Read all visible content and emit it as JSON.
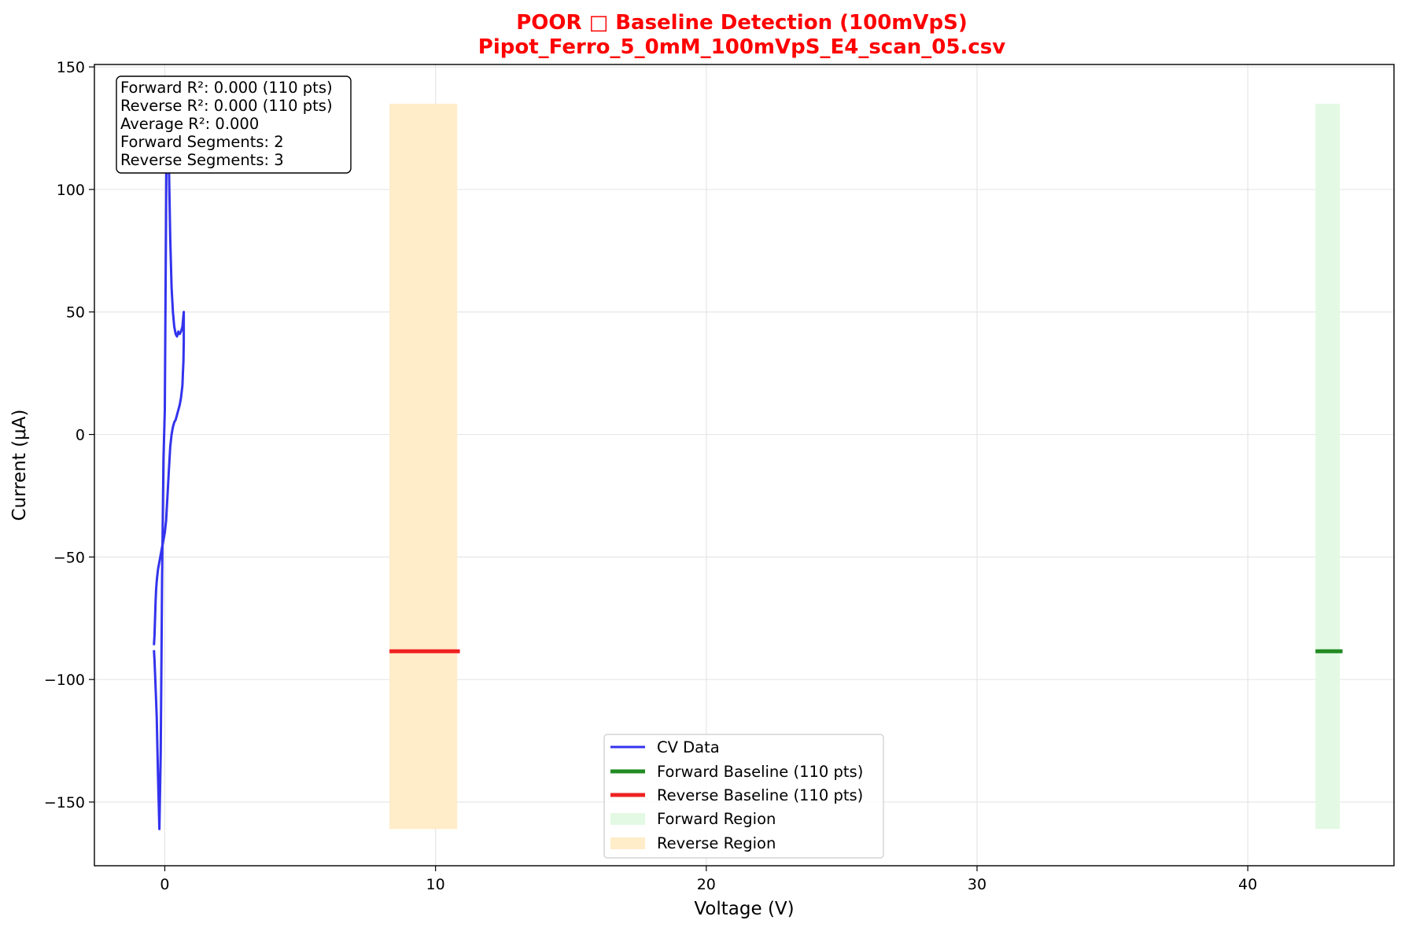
{
  "chart_data": {
    "type": "line",
    "title": "POOR □ Baseline Detection (100mVpS)",
    "subtitle": "Pipot_Ferro_5_0mM_100mVpS_E4_scan_05.csv",
    "title_color": "#ff0000",
    "xlabel": "Voltage (V)",
    "ylabel": "Current (μA)",
    "xlim": [
      -2.6,
      45.4
    ],
    "ylim": [
      -176,
      151
    ],
    "xticks": [
      0,
      10,
      20,
      30,
      40
    ],
    "yticks": [
      150,
      100,
      50,
      0,
      -50,
      -100,
      -150
    ],
    "xtick_labels": [
      "0",
      "10",
      "20",
      "30",
      "40"
    ],
    "ytick_labels": [
      "150",
      "100",
      "50",
      "0",
      "−50",
      "−100",
      "−150"
    ],
    "grid": true,
    "legend_position": "bottom-center",
    "stats_box": {
      "position": "top-left",
      "lines": [
        "Forward R²: 0.000 (110 pts)",
        "Reverse R²: 0.000 (110 pts)",
        "Average R²: 0.000",
        "Forward Segments: 2",
        "Reverse Segments: 3"
      ]
    },
    "series": [
      {
        "name": "CV Data",
        "kind": "line",
        "color": "#3333ee",
        "x": [
          -0.4,
          -0.38,
          -0.35,
          -0.3,
          -0.25,
          -0.2,
          -0.15,
          -0.1,
          -0.05,
          0.0,
          0.03,
          0.06,
          0.1,
          0.15,
          0.2,
          0.25,
          0.3,
          0.35,
          0.4,
          0.45,
          0.5,
          0.55,
          0.6,
          0.65,
          0.7,
          0.7,
          0.69,
          0.67,
          0.65,
          0.6,
          0.55,
          0.5,
          0.45,
          0.4,
          0.35,
          0.3,
          0.25,
          0.2,
          0.15,
          0.1,
          0.05,
          0.0,
          -0.05,
          -0.1,
          -0.15,
          -0.2,
          -0.25,
          -0.28,
          -0.3,
          -0.32,
          -0.34,
          -0.36,
          -0.38,
          -0.4
        ],
        "y": [
          -88,
          -92,
          -100,
          -115,
          -140,
          -161,
          -130,
          -60,
          -10,
          10,
          60,
          110,
          130,
          112,
          80,
          60,
          50,
          44,
          41,
          40,
          42,
          41,
          42,
          44,
          50,
          38,
          30,
          25,
          20,
          15,
          12,
          10,
          8,
          6,
          5,
          3,
          0,
          -5,
          -15,
          -25,
          -35,
          -40,
          -43,
          -46,
          -49,
          -52,
          -55,
          -58,
          -60,
          -63,
          -68,
          -75,
          -82,
          -86
        ]
      },
      {
        "name": "Forward Baseline (110 pts)",
        "kind": "line",
        "color": "#228b22",
        "x": [
          42.5,
          43.5
        ],
        "y": [
          -88.5,
          -88.5
        ]
      },
      {
        "name": "Reverse Baseline (110 pts)",
        "kind": "line",
        "color": "#ee2222",
        "x": [
          8.3,
          10.9
        ],
        "y": [
          -88.5,
          -88.5
        ]
      },
      {
        "name": "Forward Region",
        "kind": "region",
        "color": "#e3f9e3",
        "x_range": [
          42.5,
          43.4
        ],
        "y_range": [
          -161,
          135
        ]
      },
      {
        "name": "Reverse Region",
        "kind": "region",
        "color": "#ffecc8",
        "x_range": [
          8.3,
          10.8
        ],
        "y_range": [
          -161,
          135
        ]
      }
    ]
  }
}
